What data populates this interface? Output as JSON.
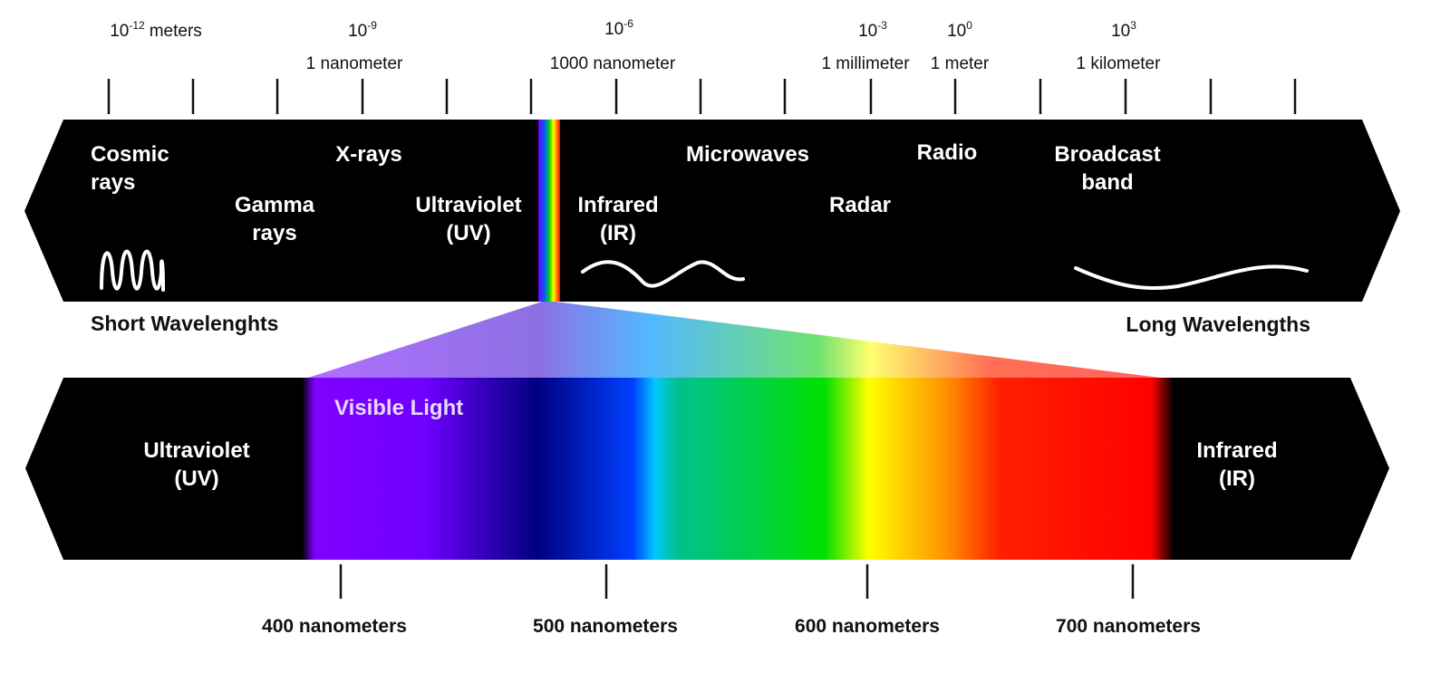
{
  "scale": {
    "powers": [
      {
        "base": "10",
        "exp": "-12",
        "unit": "meters"
      },
      {
        "base": "10",
        "exp": "-9"
      },
      {
        "base": "10",
        "exp": "-6"
      },
      {
        "base": "10",
        "exp": "-3"
      },
      {
        "base": "10",
        "exp": "0"
      },
      {
        "base": "10",
        "exp": "3"
      }
    ],
    "names": [
      "1 nanometer",
      "1000 nanometer",
      "1 millimeter",
      "1 meter",
      "1 kilometer"
    ]
  },
  "spectrum": {
    "bands": [
      [
        "Cosmic",
        "rays"
      ],
      [
        "X-rays"
      ],
      [
        "Gamma",
        "rays"
      ],
      [
        "Ultraviolet",
        "(UV)"
      ],
      [
        "Infrared",
        "(IR)"
      ],
      [
        "Microwaves"
      ],
      [
        "Radar"
      ],
      [
        "Radio"
      ],
      [
        "Broadcast",
        "band"
      ]
    ],
    "short": "Short Wavelenghts",
    "long": "Long Wavelengths"
  },
  "visible": {
    "title": "Visible Light",
    "left": [
      "Ultraviolet",
      "(UV)"
    ],
    "right": [
      "Infrared",
      "(IR)"
    ],
    "ticks": [
      "400 nanometers",
      "500 nanometers",
      "600 nanometers",
      "700 nanometers"
    ]
  }
}
